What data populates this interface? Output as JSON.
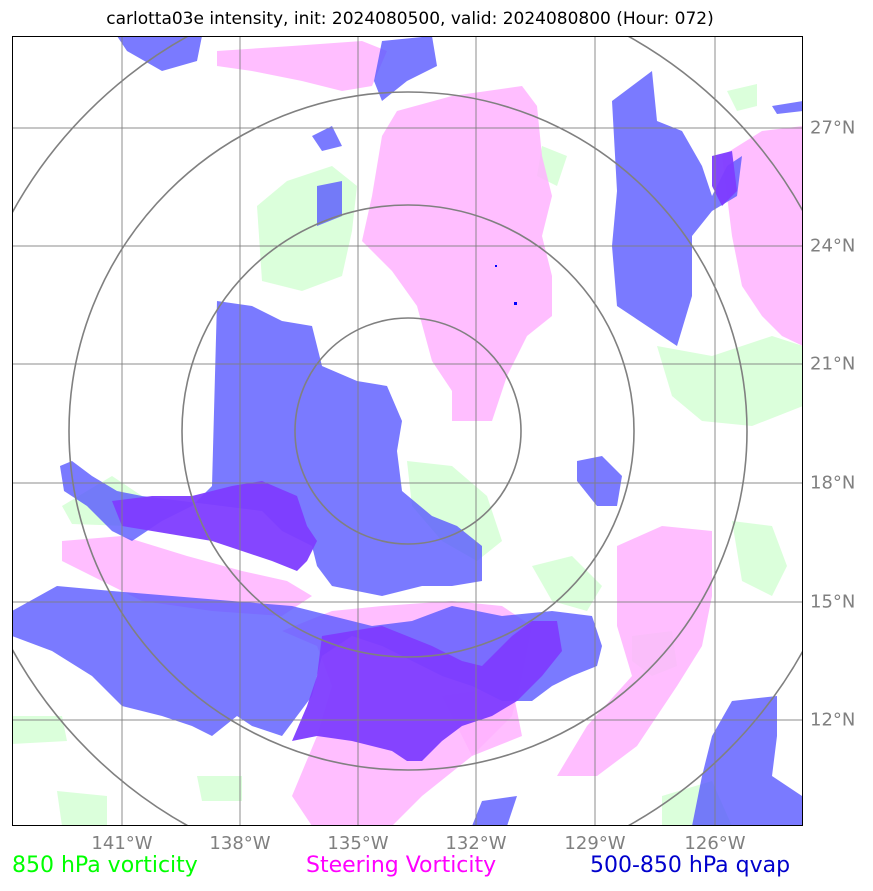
{
  "title": "carlotta03e intensity, init: 2024080500, valid: 2024080800 (Hour: 072)",
  "lat_labels": [
    "27°N",
    "24°N",
    "21°N",
    "18°N",
    "15°N",
    "12°N"
  ],
  "lon_labels": [
    "141°W",
    "138°W",
    "135°W",
    "132°W",
    "129°W",
    "126°W"
  ],
  "legend": {
    "vort850": "850 hPa vorticity",
    "steering": "Steering Vorticity",
    "qvap": "500-850 hPa qvap"
  },
  "colors": {
    "vort850": "#00ff00",
    "steering": "#ff00ff",
    "qvap": "#0000ff",
    "grid": "#808080"
  }
}
